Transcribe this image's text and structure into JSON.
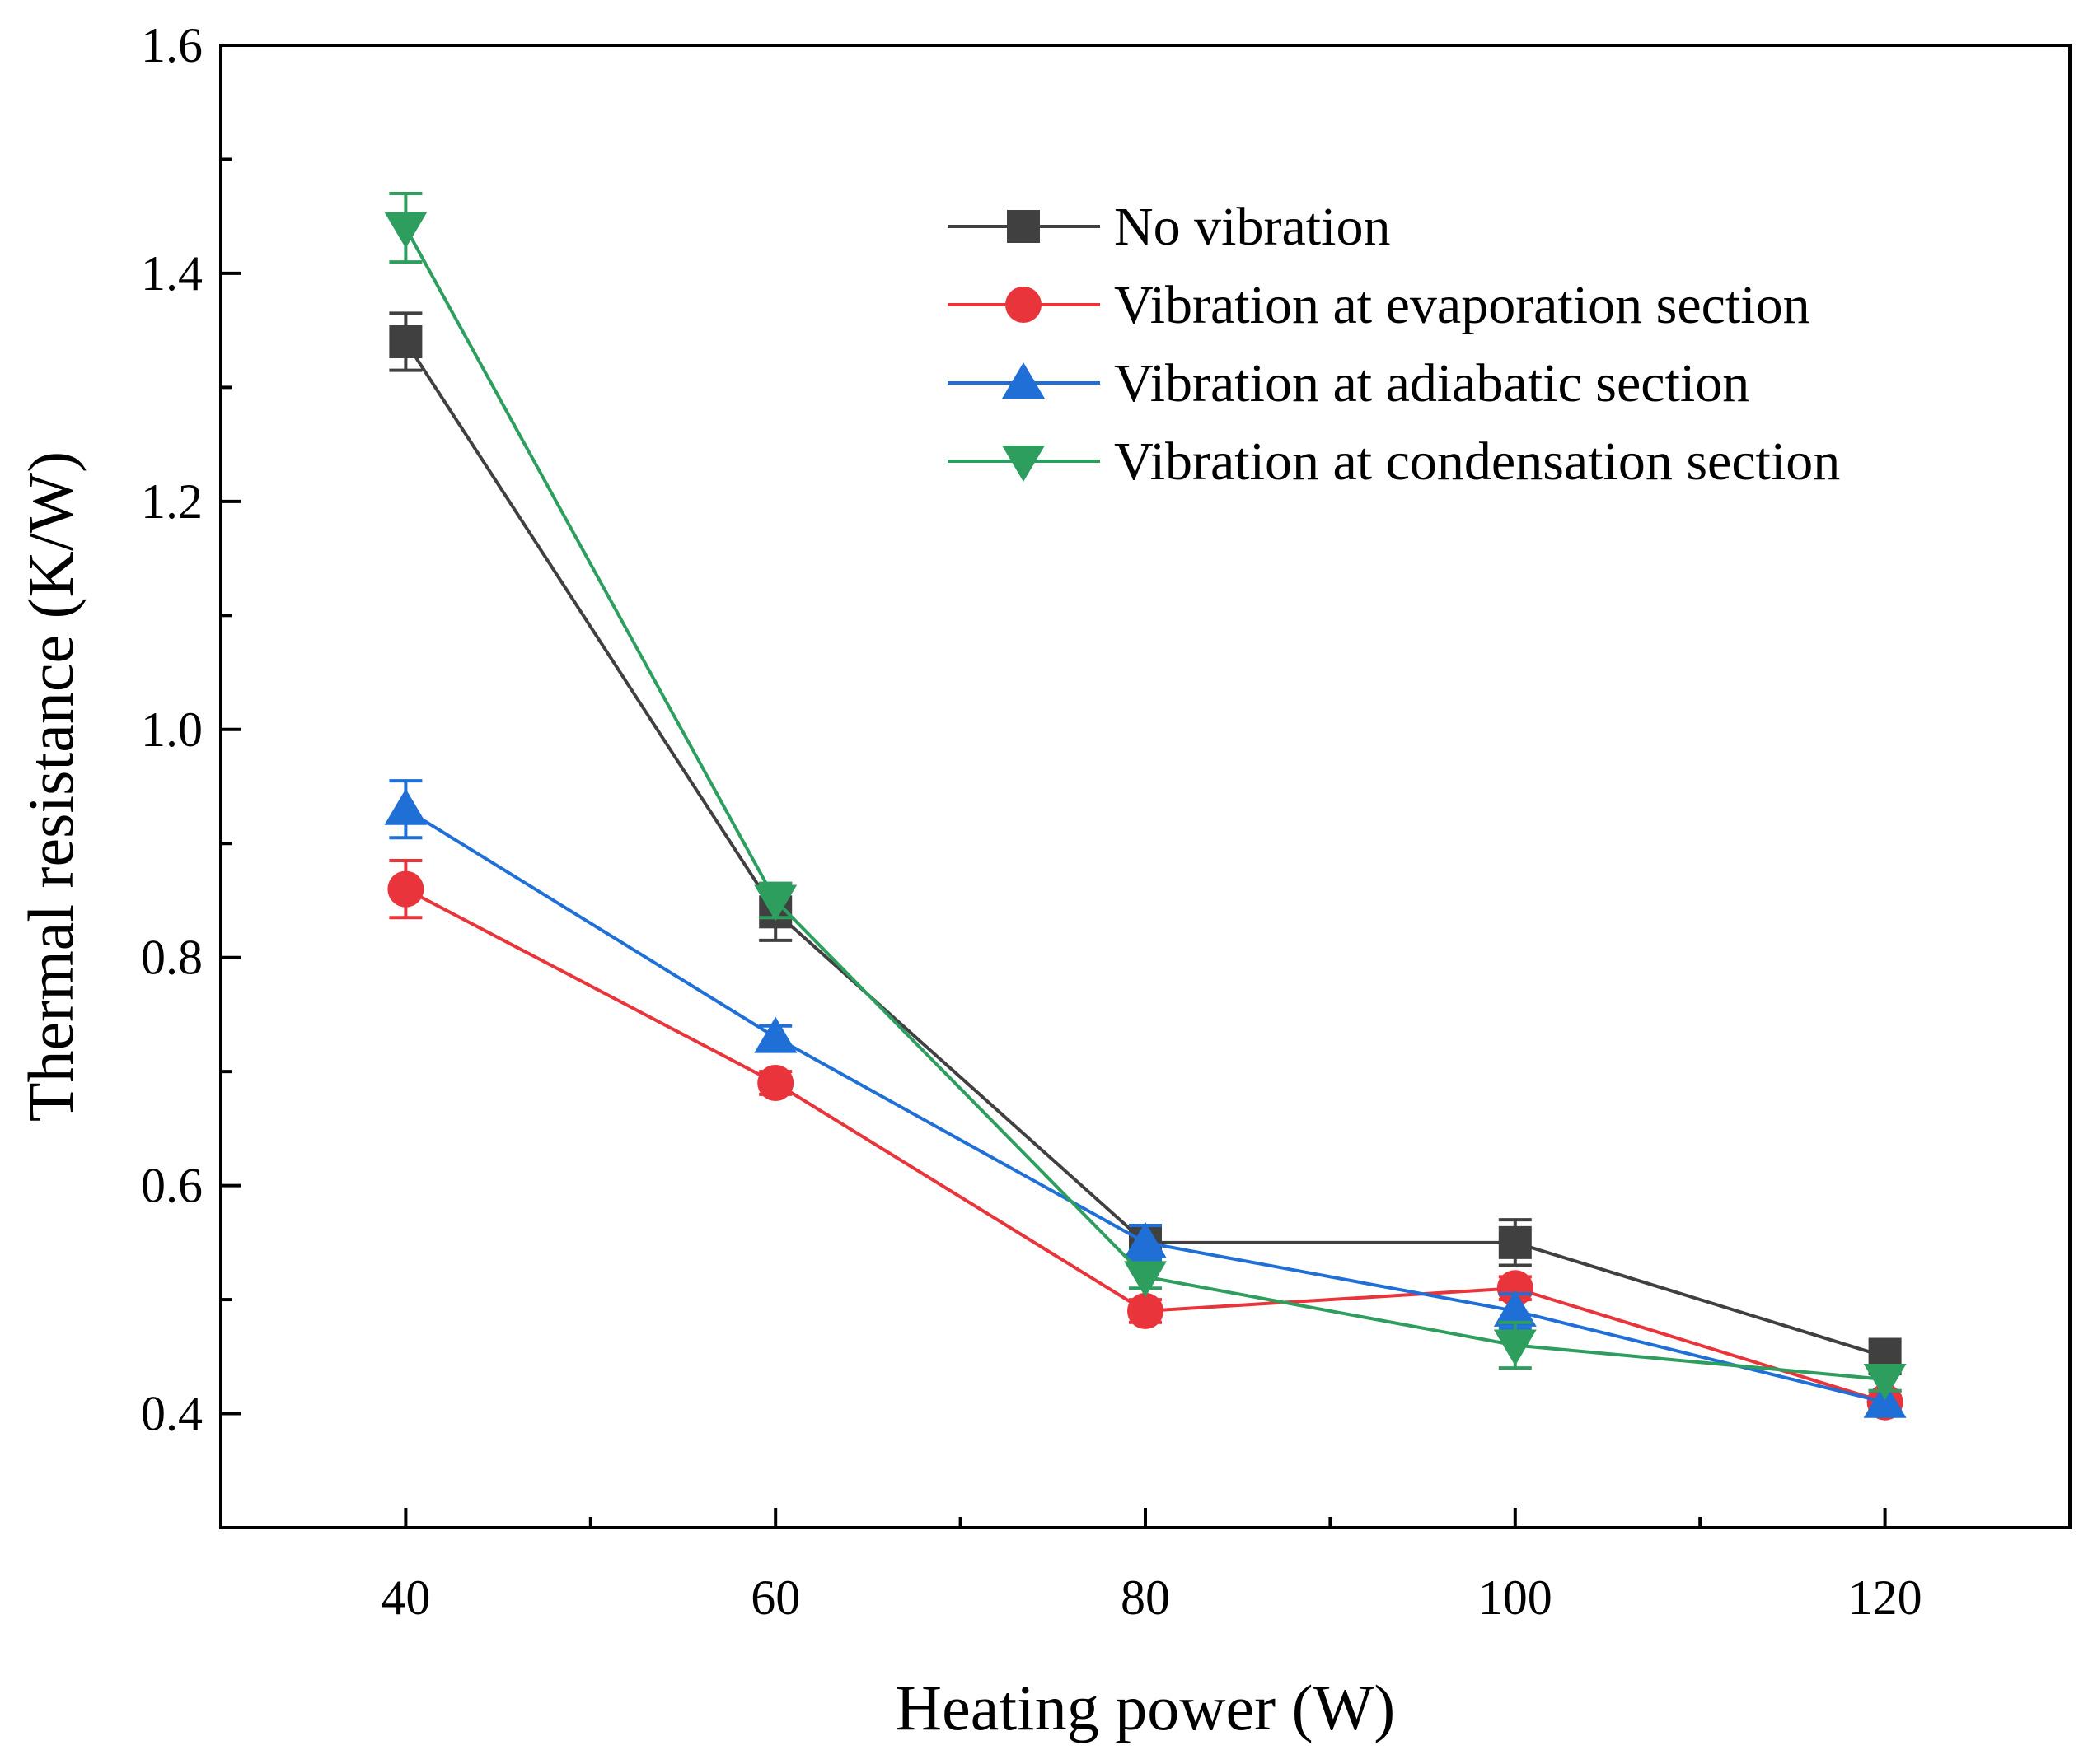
{
  "chart_data": {
    "type": "line",
    "title": "",
    "xlabel": "Heating power (W)",
    "ylabel": "Thermal resistance (K/W)",
    "x": [
      40,
      60,
      80,
      100,
      120
    ],
    "xlim": [
      30,
      130
    ],
    "ylim": [
      0.3,
      1.6
    ],
    "xticks": [
      40,
      60,
      80,
      100,
      120
    ],
    "xtick_labels": [
      "40",
      "60",
      "80",
      "100",
      "120"
    ],
    "yticks": [
      0.4,
      0.6,
      0.8,
      1.0,
      1.2,
      1.4,
      1.6
    ],
    "ytick_labels": [
      "0.4",
      "0.6",
      "0.8",
      "1.0",
      "1.2",
      "1.4",
      "1.6"
    ],
    "grid": false,
    "legend_position": "top-right",
    "series": [
      {
        "name": "No vibration",
        "color": "#404040",
        "marker": "square",
        "values": [
          1.34,
          0.84,
          0.55,
          0.55,
          0.45
        ],
        "errors": [
          0.025,
          0.025,
          0.015,
          0.02,
          0.015
        ]
      },
      {
        "name": "Vibration at evaporation section",
        "color": "#e8343a",
        "marker": "circle",
        "values": [
          0.86,
          0.69,
          0.49,
          0.51,
          0.41
        ],
        "errors": [
          0.025,
          0.01,
          0.01,
          0.01,
          0.01
        ]
      },
      {
        "name": "Vibration at adiabatic section",
        "color": "#1f6fd6",
        "marker": "triangle-up",
        "values": [
          0.93,
          0.73,
          0.55,
          0.49,
          0.41
        ],
        "errors": [
          0.025,
          0.01,
          0.015,
          0.015,
          0.01
        ]
      },
      {
        "name": "Vibration at condensation section",
        "color": "#2e9e5e",
        "marker": "triangle-down",
        "values": [
          1.44,
          0.85,
          0.52,
          0.46,
          0.43
        ],
        "errors": [
          0.03,
          0.015,
          0.01,
          0.02,
          0.01
        ]
      }
    ]
  }
}
